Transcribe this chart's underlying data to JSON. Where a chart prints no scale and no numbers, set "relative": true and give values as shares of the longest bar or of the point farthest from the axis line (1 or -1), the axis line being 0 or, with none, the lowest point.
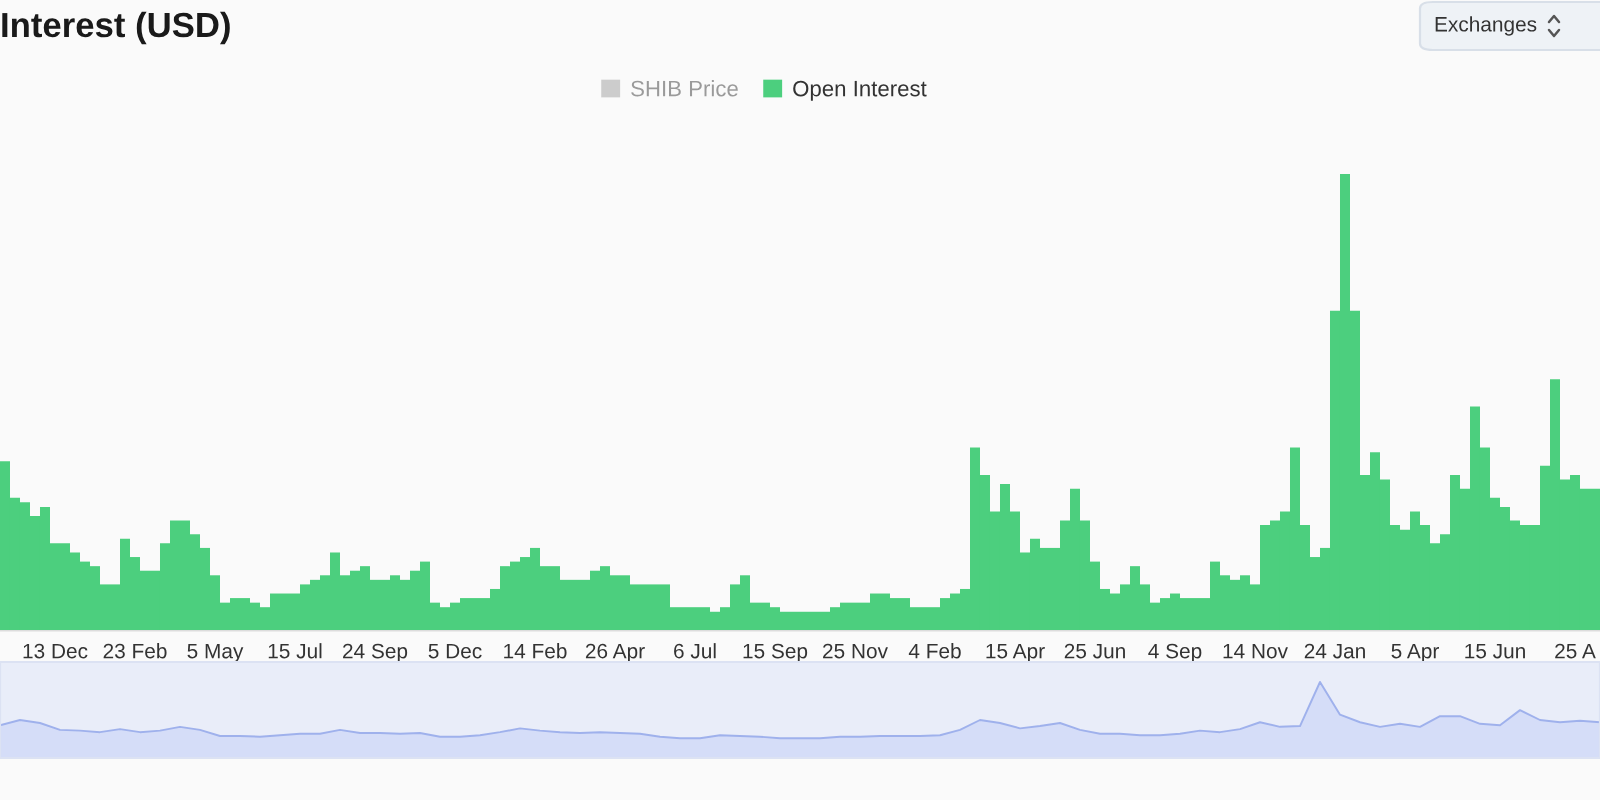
{
  "chart_data": [
    {
      "type": "bar",
      "title": "Interest (USD)",
      "annotations": [
        "Exchanges"
      ],
      "relative": true,
      "legend": "top",
      "categories": [
        null,
        null,
        null,
        null,
        null,
        "13 Dec",
        null,
        null,
        null,
        null,
        null,
        null,
        null,
        "23 Feb",
        null,
        null,
        null,
        null,
        null,
        null,
        null,
        "5 May",
        null,
        null,
        null,
        null,
        null,
        null,
        null,
        "15 Jul",
        null,
        null,
        null,
        null,
        null,
        null,
        null,
        "24 Sep",
        null,
        null,
        null,
        null,
        null,
        null,
        null,
        "5 Dec",
        null,
        null,
        null,
        null,
        null,
        null,
        null,
        "14 Feb",
        null,
        null,
        null,
        null,
        null,
        null,
        null,
        "26 Apr",
        null,
        null,
        null,
        null,
        null,
        null,
        null,
        "6 Jul",
        null,
        null,
        null,
        null,
        null,
        null,
        null,
        "15 Sep",
        null,
        null,
        null,
        null,
        null,
        null,
        null,
        "25 Nov",
        null,
        null,
        null,
        null,
        null,
        null,
        null,
        "4 Feb",
        null,
        null,
        null,
        null,
        null,
        null,
        null,
        "15 Apr",
        null,
        null,
        null,
        null,
        null,
        null,
        null,
        "25 Jun",
        null,
        null,
        null,
        null,
        null,
        null,
        null,
        "4 Sep",
        null,
        null,
        null,
        null,
        null,
        null,
        null,
        "14 Nov",
        null,
        null,
        null,
        null,
        null,
        null,
        null,
        "24 Jan",
        null,
        null,
        null,
        null,
        null,
        null,
        null,
        "5 Apr",
        null,
        null,
        null,
        null,
        null,
        null,
        null,
        "15 Jun",
        null,
        null,
        null,
        null,
        null,
        null,
        null,
        "25 A",
        null,
        null
      ],
      "series": [
        {
          "name": "SHIB Price",
          "color": "#cccccc",
          "values": [
            null,
            null,
            null,
            null,
            null,
            null,
            null,
            null,
            null,
            null,
            null,
            null,
            null,
            null,
            null,
            null,
            null,
            null,
            null,
            null,
            null,
            null,
            null,
            null,
            null,
            null,
            null,
            null,
            null,
            null,
            null,
            null,
            null,
            null,
            null,
            null,
            null,
            null,
            null,
            null,
            null,
            null,
            null,
            null,
            null,
            null,
            null,
            null,
            null,
            null,
            null,
            null,
            null,
            null,
            null,
            null,
            null,
            null,
            null,
            null,
            null,
            null,
            null,
            null,
            null,
            null,
            null,
            null,
            null,
            null,
            null,
            null,
            null,
            null,
            null,
            null,
            null,
            null,
            null,
            null,
            null,
            null,
            null,
            null,
            null,
            null,
            null,
            null,
            null,
            null,
            null,
            null,
            null,
            null,
            null,
            null,
            null,
            null,
            null,
            null,
            null,
            null,
            null,
            null,
            null,
            null,
            null,
            null,
            null,
            null,
            null,
            null,
            null,
            null,
            null,
            null,
            null,
            null,
            null,
            null,
            null,
            null,
            null,
            null,
            null,
            null,
            null,
            null,
            null,
            null,
            null,
            null,
            null,
            null,
            null,
            null,
            null,
            null,
            null,
            null,
            null,
            null,
            null,
            null,
            null,
            null,
            null,
            null,
            null,
            null,
            null,
            null,
            null,
            null,
            null,
            null,
            null,
            null,
            null,
            null
          ]
        },
        {
          "name": "Open Interest",
          "color": "#4ccf7e",
          "values": [
            0.37,
            0.29,
            0.28,
            0.25,
            0.27,
            0.19,
            0.19,
            0.17,
            0.15,
            0.14,
            0.1,
            0.1,
            0.2,
            0.16,
            0.13,
            0.13,
            0.19,
            0.24,
            0.24,
            0.21,
            0.18,
            0.12,
            0.06,
            0.07,
            0.07,
            0.06,
            0.05,
            0.08,
            0.08,
            0.08,
            0.1,
            0.11,
            0.12,
            0.17,
            0.12,
            0.13,
            0.14,
            0.11,
            0.11,
            0.12,
            0.11,
            0.13,
            0.15,
            0.06,
            0.05,
            0.06,
            0.07,
            0.07,
            0.07,
            0.09,
            0.14,
            0.15,
            0.16,
            0.18,
            0.14,
            0.14,
            0.11,
            0.11,
            0.11,
            0.13,
            0.14,
            0.12,
            0.12,
            0.1,
            0.1,
            0.1,
            0.1,
            0.05,
            0.05,
            0.05,
            0.05,
            0.04,
            0.05,
            0.1,
            0.12,
            0.06,
            0.06,
            0.05,
            0.04,
            0.04,
            0.04,
            0.04,
            0.04,
            0.05,
            0.06,
            0.06,
            0.06,
            0.08,
            0.08,
            0.07,
            0.07,
            0.05,
            0.05,
            0.05,
            0.07,
            0.08,
            0.09,
            0.4,
            0.34,
            0.26,
            0.32,
            0.26,
            0.17,
            0.2,
            0.18,
            0.18,
            0.24,
            0.31,
            0.24,
            0.15,
            0.09,
            0.08,
            0.1,
            0.14,
            0.1,
            0.06,
            0.07,
            0.08,
            0.07,
            0.07,
            0.07,
            0.15,
            0.12,
            0.11,
            0.12,
            0.1,
            0.23,
            0.24,
            0.26,
            0.4,
            0.23,
            0.16,
            0.18,
            0.7,
            1,
            0.7,
            0.34,
            0.39,
            0.33,
            0.23,
            0.22,
            0.26,
            0.23,
            0.19,
            0.21,
            0.34,
            0.31,
            0.49,
            0.4,
            0.29,
            0.27,
            0.24,
            0.23,
            0.23,
            0.36,
            0.55,
            0.33,
            0.34,
            0.31,
            0.31
          ]
        }
      ]
    },
    {
      "type": "area",
      "relative": true,
      "color": "#d5ddf8",
      "categories": [
        null,
        null,
        null,
        null,
        null,
        null,
        null,
        null,
        null,
        null,
        null,
        null,
        null,
        null,
        null,
        null,
        null,
        null,
        null,
        null,
        null,
        null,
        null,
        null,
        null,
        null,
        null,
        null,
        null,
        null,
        null,
        null,
        null,
        null,
        null,
        null,
        null,
        null,
        null,
        null,
        null,
        null,
        null,
        null,
        null,
        null,
        null,
        null,
        null,
        null,
        null,
        null,
        null,
        null,
        null,
        null,
        null,
        null,
        null,
        null,
        null,
        null,
        null,
        null,
        null,
        null,
        null,
        null,
        null,
        null,
        null,
        null,
        null,
        null,
        null,
        null,
        null,
        null,
        null,
        null,
        null
      ],
      "values": [
        0.43,
        0.5,
        0.46,
        0.37,
        0.36,
        0.34,
        0.38,
        0.34,
        0.36,
        0.41,
        0.37,
        0.29,
        0.29,
        0.28,
        0.3,
        0.32,
        0.32,
        0.37,
        0.33,
        0.33,
        0.32,
        0.33,
        0.28,
        0.28,
        0.3,
        0.34,
        0.39,
        0.36,
        0.34,
        0.33,
        0.34,
        0.33,
        0.32,
        0.28,
        0.26,
        0.26,
        0.3,
        0.29,
        0.28,
        0.26,
        0.26,
        0.26,
        0.28,
        0.28,
        0.29,
        0.29,
        0.29,
        0.3,
        0.37,
        0.5,
        0.46,
        0.39,
        0.42,
        0.46,
        0.37,
        0.32,
        0.32,
        0.3,
        0.3,
        0.32,
        0.36,
        0.34,
        0.38,
        0.47,
        0.41,
        0.42,
        1,
        0.57,
        0.47,
        0.41,
        0.45,
        0.41,
        0.55,
        0.55,
        0.45,
        0.43,
        0.63,
        0.5,
        0.47,
        0.49,
        0.47
      ]
    }
  ]
}
